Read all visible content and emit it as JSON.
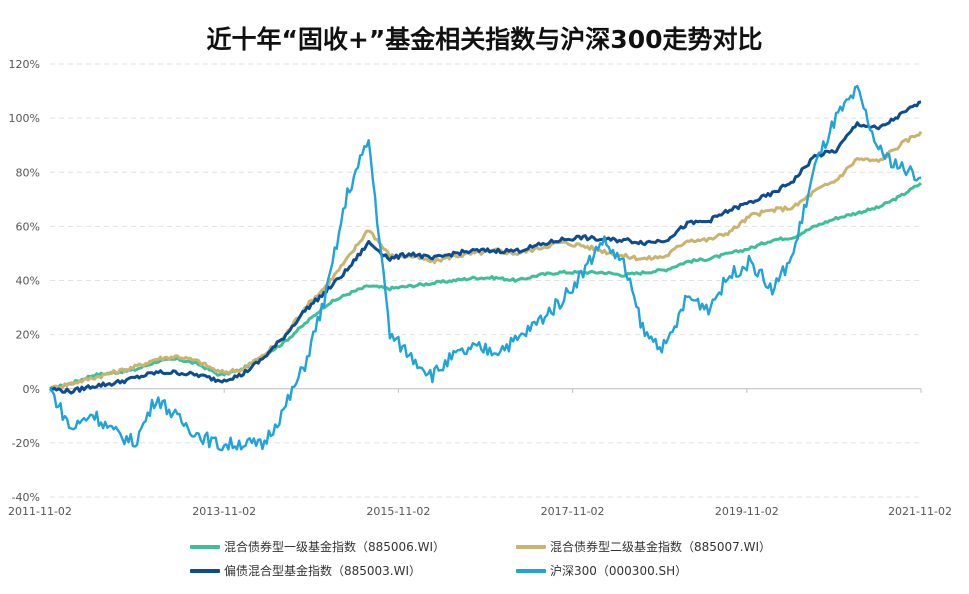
{
  "chart_data": {
    "type": "line",
    "title": "近十年“固收+”基金相关指数与沪深300走势对比",
    "xlabel": "",
    "ylabel": "",
    "x_ticks": [
      "2011-11-02",
      "2013-11-02",
      "2015-11-02",
      "2017-11-02",
      "2019-11-02",
      "2021-11-02"
    ],
    "y_ticks": [
      "120%",
      "100%",
      "80%",
      "60%",
      "40%",
      "20%",
      "0%",
      "-20%",
      "-40%"
    ],
    "ylim": [
      -40,
      120
    ],
    "xlim": [
      "2011-11-02",
      "2021-11-02"
    ],
    "grid": "horizontal dashed",
    "legend_position": "bottom",
    "x": [
      "2011-11",
      "2012-02",
      "2012-05",
      "2012-08",
      "2012-11",
      "2013-02",
      "2013-05",
      "2013-08",
      "2013-11",
      "2014-02",
      "2014-05",
      "2014-08",
      "2014-11",
      "2015-02",
      "2015-04",
      "2015-06",
      "2015-08",
      "2015-11",
      "2016-02",
      "2016-05",
      "2016-08",
      "2016-11",
      "2017-02",
      "2017-05",
      "2017-08",
      "2017-11",
      "2018-02",
      "2018-05",
      "2018-08",
      "2018-11",
      "2019-02",
      "2019-05",
      "2019-08",
      "2019-11",
      "2020-02",
      "2020-05",
      "2020-08",
      "2020-11",
      "2021-02",
      "2021-05",
      "2021-08",
      "2021-11"
    ],
    "series": [
      {
        "name": "混合债券型一级基金指数（885006.WI）",
        "color": "#3dbf9a",
        "values": [
          0,
          2,
          5,
          6,
          7,
          10,
          11,
          9,
          5,
          7,
          12,
          17,
          24,
          31,
          35,
          38,
          37,
          38,
          39,
          40,
          41,
          41,
          40,
          42,
          43,
          43,
          43,
          42,
          43,
          44,
          47,
          48,
          50,
          52,
          55,
          56,
          60,
          63,
          65,
          67,
          71,
          76
        ]
      },
      {
        "name": "混合债券型二级基金指数（885007.WI）",
        "color": "#c9b46f",
        "values": [
          0,
          2,
          4,
          6,
          8,
          11,
          12,
          10,
          6,
          7,
          12,
          19,
          30,
          38,
          48,
          59,
          49,
          49,
          47,
          49,
          50,
          51,
          50,
          52,
          54,
          53,
          51,
          49,
          48,
          49,
          55,
          55,
          58,
          64,
          66,
          67,
          73,
          77,
          85,
          84,
          90,
          95
        ]
      },
      {
        "name": "偏债混合型基金指数（885003.WI）",
        "color": "#0d4c8f",
        "values": [
          0,
          -1,
          1,
          2,
          4,
          6,
          6,
          5,
          3,
          5,
          11,
          19,
          29,
          36,
          44,
          54,
          48,
          50,
          48,
          50,
          51,
          51,
          51,
          53,
          55,
          56,
          55,
          55,
          54,
          55,
          61,
          62,
          66,
          69,
          72,
          77,
          86,
          88,
          98,
          96,
          101,
          106
        ]
      },
      {
        "name": "沪深300（000300.SH）",
        "color": "#1fa3d9",
        "values": [
          0,
          -15,
          -9,
          -16,
          -20,
          -3,
          -11,
          -17,
          -21,
          -20,
          -21,
          -8,
          9,
          35,
          72,
          92,
          20,
          12,
          5,
          12,
          15,
          14,
          18,
          25,
          32,
          42,
          55,
          46,
          20,
          15,
          34,
          30,
          42,
          47,
          36,
          50,
          82,
          100,
          110,
          88,
          82,
          78
        ]
      }
    ]
  }
}
